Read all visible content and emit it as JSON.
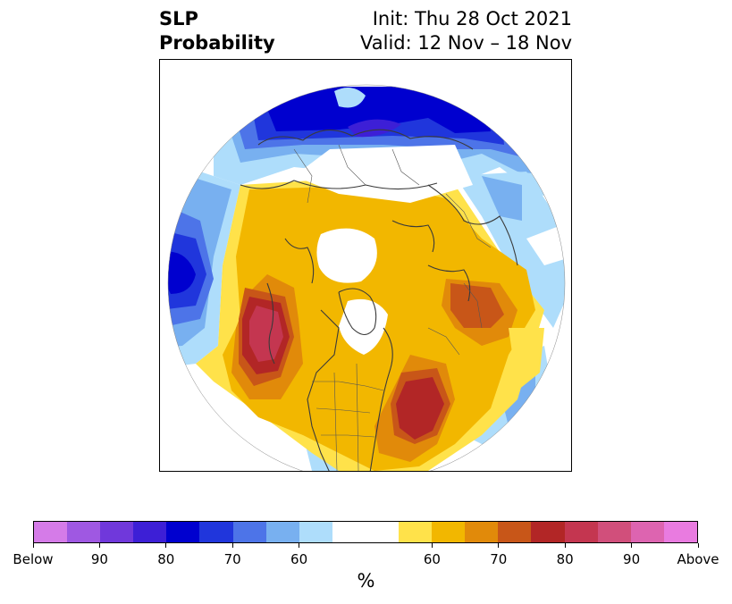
{
  "title": {
    "left_line1": "SLP",
    "left_line2": "Probability",
    "right_line1": "Init: Thu 28 Oct 2021",
    "right_line2": "Valid: 12 Nov – 18 Nov"
  },
  "colorbar": {
    "colors": [
      "#d57be8",
      "#9f58e2",
      "#7038db",
      "#3d1fd6",
      "#0000cf",
      "#2036dc",
      "#4d74e8",
      "#78b0f0",
      "#aeddfb",
      "#ffffff",
      "#ffffff",
      "#ffe24a",
      "#f2b700",
      "#e18a0a",
      "#c85618",
      "#b22626",
      "#c43650",
      "#d14f7b",
      "#dd64b0",
      "#e97be0"
    ],
    "tick_labels": [
      "Below",
      "90",
      "80",
      "70",
      "60",
      "60",
      "70",
      "80",
      "90",
      "Above"
    ],
    "unit": "%"
  },
  "map": {
    "projection": "polar-stereographic",
    "below_colors": {
      "p60": "#aeddfb",
      "p65": "#78b0f0",
      "p70": "#4d74e8",
      "p75": "#2036dc",
      "p80": "#0000cf",
      "p85": "#3d1fd6"
    },
    "above_colors": {
      "p60": "#ffe24a",
      "p65": "#f2b700",
      "p70": "#e18a0a",
      "p75": "#c85618",
      "p80": "#b22626",
      "p85": "#c43650"
    }
  }
}
